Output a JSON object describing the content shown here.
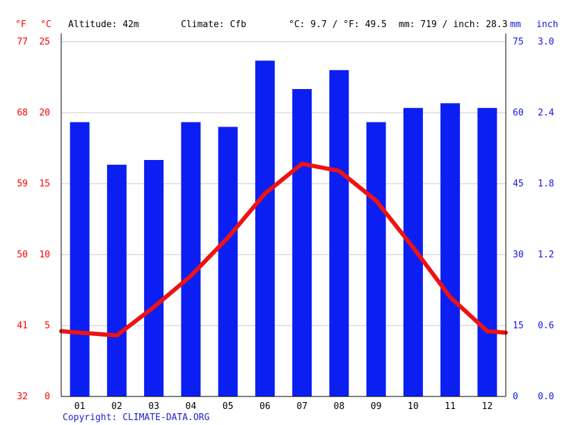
{
  "header": {
    "unit_f": "°F",
    "unit_c": "°C",
    "altitude": "Altitude: 42m",
    "climate": "Climate: Cfb",
    "avg_temp": "°C: 9.7 / °F: 49.5",
    "precip_total": "mm: 719 / inch: 28.3",
    "unit_mm": "mm",
    "unit_inch": "inch"
  },
  "footer": {
    "copyright_label": "Copyright: ",
    "copyright_link": "CLIMATE-DATA.ORG"
  },
  "colors": {
    "bar": "#0b1ff2",
    "line": "#ee1212",
    "axis_red": "#ff0000",
    "axis_blue": "#1414e6",
    "grid": "#c9c9c9",
    "axis_line": "#000000",
    "month_label": "#000000"
  },
  "chart_data": {
    "type": "bar",
    "title": "Climate graph (Cfb), Altitude 42m, avg temp 9.7 °C / 49.5 °F, annual precipitation 719 mm / 28.3 inch",
    "categories": [
      "01",
      "02",
      "03",
      "04",
      "05",
      "06",
      "07",
      "08",
      "09",
      "10",
      "11",
      "12"
    ],
    "series": [
      {
        "name": "Precipitation (mm)",
        "type": "bar",
        "values": [
          58,
          49,
          50,
          58,
          57,
          71,
          65,
          69,
          58,
          61,
          62,
          61
        ]
      },
      {
        "name": "Temperature (°C)",
        "type": "line",
        "values": [
          4.5,
          4.3,
          6.3,
          8.5,
          11.2,
          14.3,
          16.4,
          15.9,
          13.8,
          10.5,
          7.0,
          4.6
        ],
        "edge_start": 4.6,
        "edge_end": 4.5
      }
    ],
    "left_axis": {
      "c_ticks": [
        0,
        5,
        10,
        15,
        20,
        25
      ],
      "f_ticks": [
        32,
        41,
        50,
        59,
        68,
        77
      ],
      "c_range": [
        0,
        25
      ]
    },
    "right_axis": {
      "mm_ticks": [
        0,
        15,
        30,
        45,
        60,
        75
      ],
      "inch_ticks": [
        "0.0",
        "0.6",
        "1.2",
        "1.8",
        "2.4",
        "3.0"
      ],
      "mm_range": [
        0,
        75
      ]
    },
    "grid": true,
    "legend": "none"
  }
}
